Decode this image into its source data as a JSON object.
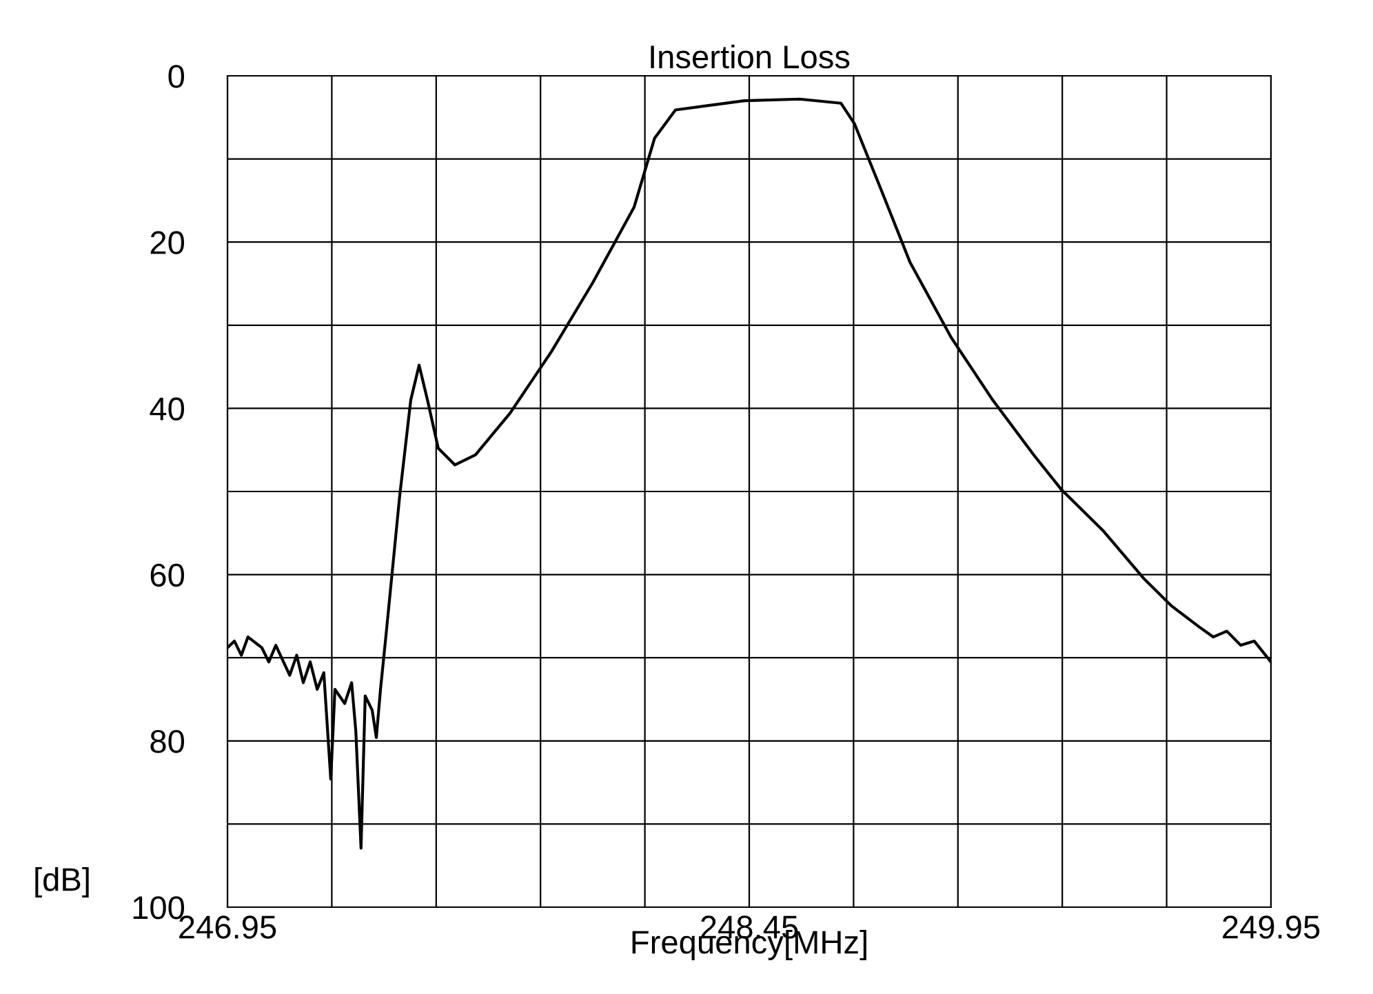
{
  "chart_data": {
    "type": "line",
    "title": "Insertion Loss",
    "xlabel": "Frequency[MHz]",
    "ylabel": "[dB]",
    "x": [
      246.95,
      246.97,
      246.99,
      247.009,
      247.049,
      247.069,
      247.089,
      247.129,
      247.149,
      247.168,
      247.188,
      247.208,
      247.227,
      247.247,
      247.259,
      247.287,
      247.307,
      247.319,
      247.334,
      247.346,
      247.366,
      247.378,
      247.39,
      247.406,
      247.445,
      247.477,
      247.501,
      247.525,
      247.556,
      247.604,
      247.663,
      247.762,
      247.881,
      248.0,
      248.119,
      248.178,
      248.238,
      248.436,
      248.595,
      248.714,
      248.753,
      248.833,
      248.912,
      249.031,
      249.15,
      249.268,
      249.348,
      249.467,
      249.585,
      249.665,
      249.744,
      249.784,
      249.823,
      249.863,
      249.902,
      249.95
    ],
    "series": [
      {
        "color": "#000000",
        "values": [
          68.8,
          68.0,
          69.7,
          67.5,
          68.8,
          70.5,
          68.5,
          72.1,
          69.7,
          73.0,
          70.5,
          73.8,
          71.8,
          84.6,
          73.8,
          75.5,
          73.0,
          78.8,
          92.9,
          74.6,
          76.3,
          79.6,
          73.8,
          67.2,
          50.6,
          39.0,
          34.8,
          39.0,
          44.8,
          46.8,
          45.6,
          40.6,
          33.2,
          24.9,
          15.8,
          7.5,
          4.1,
          3.0,
          2.8,
          3.3,
          5.8,
          14.1,
          22.4,
          31.5,
          39.0,
          45.6,
          49.8,
          54.7,
          60.5,
          63.8,
          66.3,
          67.5,
          66.8,
          68.5,
          68.0,
          70.5
        ]
      }
    ],
    "xlim": [
      246.95,
      249.95
    ],
    "ylim": [
      100,
      0
    ],
    "xticks": [
      246.95,
      {
        "value": 247.25,
        "label": null
      },
      {
        "value": 247.55,
        "label": null
      },
      {
        "value": 247.85,
        "label": null
      },
      {
        "value": 248.15,
        "label": null
      },
      248.45,
      {
        "value": 248.75,
        "label": null
      },
      {
        "value": 249.05,
        "label": null
      },
      {
        "value": 249.35,
        "label": null
      },
      {
        "value": 249.65,
        "label": null
      },
      249.95
    ],
    "yticks": [
      0,
      {
        "value": 10,
        "label": null
      },
      20,
      {
        "value": 30,
        "label": null
      },
      40,
      {
        "value": 50,
        "label": null
      },
      60,
      {
        "value": 70,
        "label": null
      },
      80,
      {
        "value": 90,
        "label": null
      },
      100
    ],
    "grid": true,
    "line_style": "solid",
    "marker": "none"
  }
}
